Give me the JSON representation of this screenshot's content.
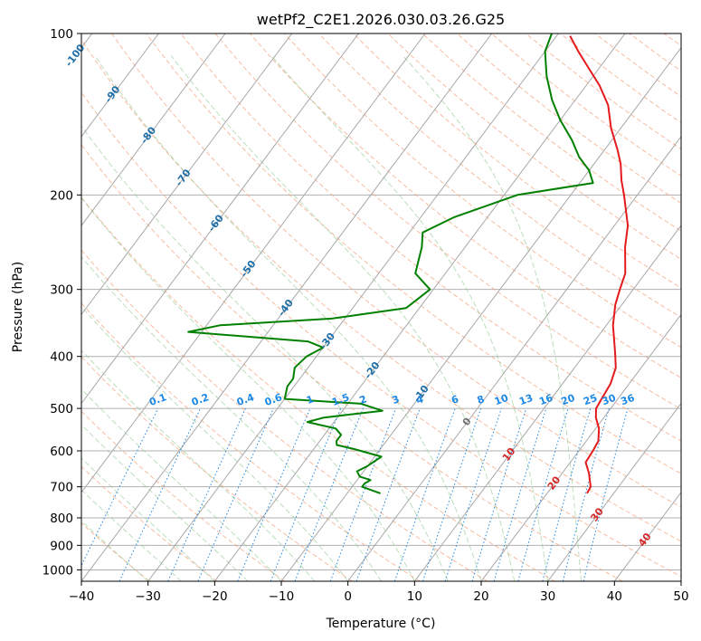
{
  "chart_data": {
    "type": "line",
    "diagram": "skew-T log-P",
    "title": "wetPf2_C2E1.2026.030.03.26.G25",
    "xlabel": "Temperature (°C)",
    "ylabel": "Pressure (hPa)",
    "xlim": [
      -40,
      50
    ],
    "ylim": [
      1050,
      100
    ],
    "y_scale": "log",
    "grid": true,
    "x_ticks": [
      "−40",
      "−30",
      "−20",
      "−10",
      "0",
      "10",
      "20",
      "30",
      "40",
      "50"
    ],
    "x_tick_values": [
      -40,
      -30,
      -20,
      -10,
      0,
      10,
      20,
      30,
      40,
      50
    ],
    "y_ticks": [
      "100",
      "200",
      "300",
      "400",
      "500",
      "600",
      "700",
      "800",
      "900",
      "1000"
    ],
    "y_tick_values": [
      100,
      200,
      300,
      400,
      500,
      600,
      700,
      800,
      900,
      1000
    ],
    "isotherm_labels": [
      {
        "text": "-100",
        "t": -100,
        "p": 110
      },
      {
        "text": "-90",
        "t": -90,
        "p": 130
      },
      {
        "text": "-80",
        "t": -80,
        "p": 155
      },
      {
        "text": "-70",
        "t": -70,
        "p": 186
      },
      {
        "text": "-60",
        "t": -60,
        "p": 226
      },
      {
        "text": "-50",
        "t": -50,
        "p": 275
      },
      {
        "text": "-40",
        "t": -40,
        "p": 325
      },
      {
        "text": "-30",
        "t": -30,
        "p": 375
      },
      {
        "text": "-20",
        "t": -20,
        "p": 425
      },
      {
        "text": "-10",
        "t": -10,
        "p": 470
      },
      {
        "text": "0",
        "t": 0,
        "p": 530
      },
      {
        "text": "10",
        "t": 10,
        "p": 610
      },
      {
        "text": "20",
        "t": 20,
        "p": 690
      },
      {
        "text": "30",
        "t": 30,
        "p": 790
      },
      {
        "text": "40",
        "t": 40,
        "p": 880
      }
    ],
    "mixing_ratio_labels": [
      "0.1",
      "0.2",
      "0.4",
      "0.6",
      "1",
      "1.5",
      "2",
      "3",
      "4",
      "6",
      "8",
      "10",
      "13",
      "16",
      "20",
      "25",
      "30",
      "36"
    ],
    "mixing_ratio_values": [
      0.1,
      0.2,
      0.4,
      0.6,
      1,
      1.5,
      2,
      3,
      4,
      6,
      8,
      10,
      13,
      16,
      20,
      25,
      30,
      36
    ],
    "series": [
      {
        "color": "#e41a1c",
        "points": [
          [
            26.0,
            720
          ],
          [
            25.8,
            700
          ],
          [
            24.0,
            660
          ],
          [
            22.3,
            630
          ],
          [
            22.1,
            600
          ],
          [
            21.8,
            575
          ],
          [
            20.5,
            545
          ],
          [
            18.8,
            520
          ],
          [
            17.8,
            500
          ],
          [
            17.5,
            475
          ],
          [
            17.2,
            450
          ],
          [
            16.2,
            420
          ],
          [
            14.5,
            395
          ],
          [
            13.0,
            375
          ],
          [
            11.0,
            350
          ],
          [
            9.0,
            320
          ],
          [
            8.0,
            300
          ],
          [
            7.0,
            280
          ],
          [
            4.0,
            250
          ],
          [
            2.0,
            228
          ],
          [
            -2.0,
            200
          ],
          [
            -4.0,
            188
          ],
          [
            -6.0,
            175
          ],
          [
            -8.0,
            165
          ],
          [
            -11.5,
            150
          ],
          [
            -14.5,
            136
          ],
          [
            -18.0,
            125
          ],
          [
            -22.0,
            115
          ],
          [
            -25.0,
            108
          ],
          [
            -28.0,
            101
          ]
        ]
      },
      {
        "color": "#008000",
        "points": [
          [
            -5.0,
            720
          ],
          [
            -8.5,
            700
          ],
          [
            -8.5,
            690
          ],
          [
            -8.0,
            680
          ],
          [
            -10.0,
            670
          ],
          [
            -11.0,
            655
          ],
          [
            -10.0,
            640
          ],
          [
            -9.0,
            615
          ],
          [
            -14.0,
            595
          ],
          [
            -17.0,
            585
          ],
          [
            -17.5,
            575
          ],
          [
            -17.5,
            560
          ],
          [
            -19.0,
            545
          ],
          [
            -24.0,
            530
          ],
          [
            -22.0,
            520
          ],
          [
            -14.0,
            505
          ],
          [
            -18.0,
            490
          ],
          [
            -30.0,
            480
          ],
          [
            -31.0,
            455
          ],
          [
            -31.0,
            440
          ],
          [
            -32.0,
            420
          ],
          [
            -31.5,
            400
          ],
          [
            -30.0,
            385
          ],
          [
            -33.0,
            375
          ],
          [
            -52.0,
            360
          ],
          [
            -48.0,
            350
          ],
          [
            -32.0,
            340
          ],
          [
            -22.0,
            325
          ],
          [
            -20.5,
            300
          ],
          [
            -24.5,
            280
          ],
          [
            -26.5,
            250
          ],
          [
            -28.0,
            235
          ],
          [
            -25.0,
            220
          ],
          [
            -18.0,
            200
          ],
          [
            -8.0,
            190
          ],
          [
            -10.0,
            180
          ],
          [
            -13.0,
            170
          ],
          [
            -16.0,
            158
          ],
          [
            -20.0,
            145
          ],
          [
            -23.5,
            133
          ],
          [
            -27.0,
            120
          ],
          [
            -30.0,
            108
          ],
          [
            -31.0,
            100
          ]
        ]
      }
    ]
  }
}
